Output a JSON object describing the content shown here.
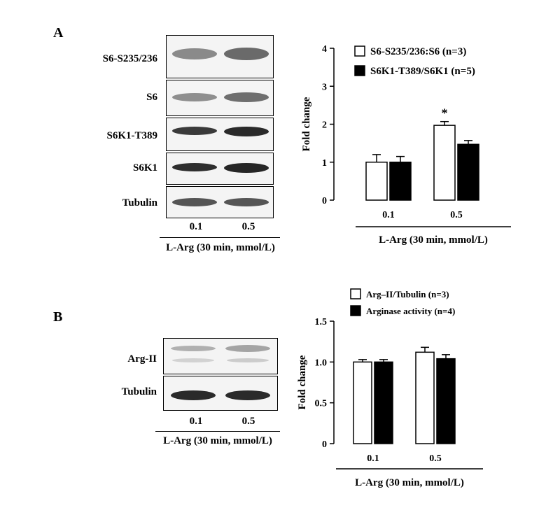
{
  "panel_a": {
    "letter": "A",
    "blots": [
      {
        "label": "S6-S235/236"
      },
      {
        "label": "S6"
      },
      {
        "label": "S6K1-T389"
      },
      {
        "label": "S6K1"
      },
      {
        "label": "Tubulin"
      }
    ],
    "lanes": [
      "0.1",
      "0.5"
    ],
    "xaxis_title": "L-Arg (30 min, mmol/L)"
  },
  "panel_b": {
    "letter": "B",
    "blots": [
      {
        "label": "Arg-II"
      },
      {
        "label": "Tubulin"
      }
    ],
    "lanes": [
      "0.1",
      "0.5"
    ],
    "xaxis_title": "L-Arg (30 min, mmol/L)"
  },
  "chart_data": [
    {
      "type": "bar",
      "categories": [
        "0.1",
        "0.5"
      ],
      "xlabel": "L-Arg (30 min, mmol/L)",
      "ylabel": "Fold change",
      "ylim": [
        0,
        4
      ],
      "yticks": [
        "0",
        "1",
        "2",
        "3",
        "4"
      ],
      "legend_position": "top-right",
      "series": [
        {
          "name": "S6-S235/236:S6 (n=3)",
          "fill": "#ffffff",
          "values": [
            1.0,
            1.97
          ],
          "errors": [
            0.2,
            0.1
          ]
        },
        {
          "name": "S6K1-T389/S6K1 (n=5)",
          "fill": "#000000",
          "values": [
            1.0,
            1.47
          ],
          "errors": [
            0.15,
            0.1
          ]
        }
      ],
      "annotations": [
        {
          "text": "*",
          "category": "0.5",
          "series": 0
        }
      ]
    },
    {
      "type": "bar",
      "categories": [
        "0.1",
        "0.5"
      ],
      "xlabel": "L-Arg (30 min, mmol/L)",
      "ylabel": "Fold change",
      "ylim": [
        0,
        1.5
      ],
      "yticks": [
        "0",
        "0.5",
        "1.0",
        "1.5"
      ],
      "legend_position": "top",
      "series": [
        {
          "name": "Arg–II/Tubulin (n=3)",
          "fill": "#ffffff",
          "values": [
            1.0,
            1.12
          ],
          "errors": [
            0.03,
            0.06
          ]
        },
        {
          "name": "Arginase activity (n=4)",
          "fill": "#000000",
          "values": [
            1.0,
            1.04
          ],
          "errors": [
            0.03,
            0.05
          ]
        }
      ],
      "annotations": []
    }
  ]
}
